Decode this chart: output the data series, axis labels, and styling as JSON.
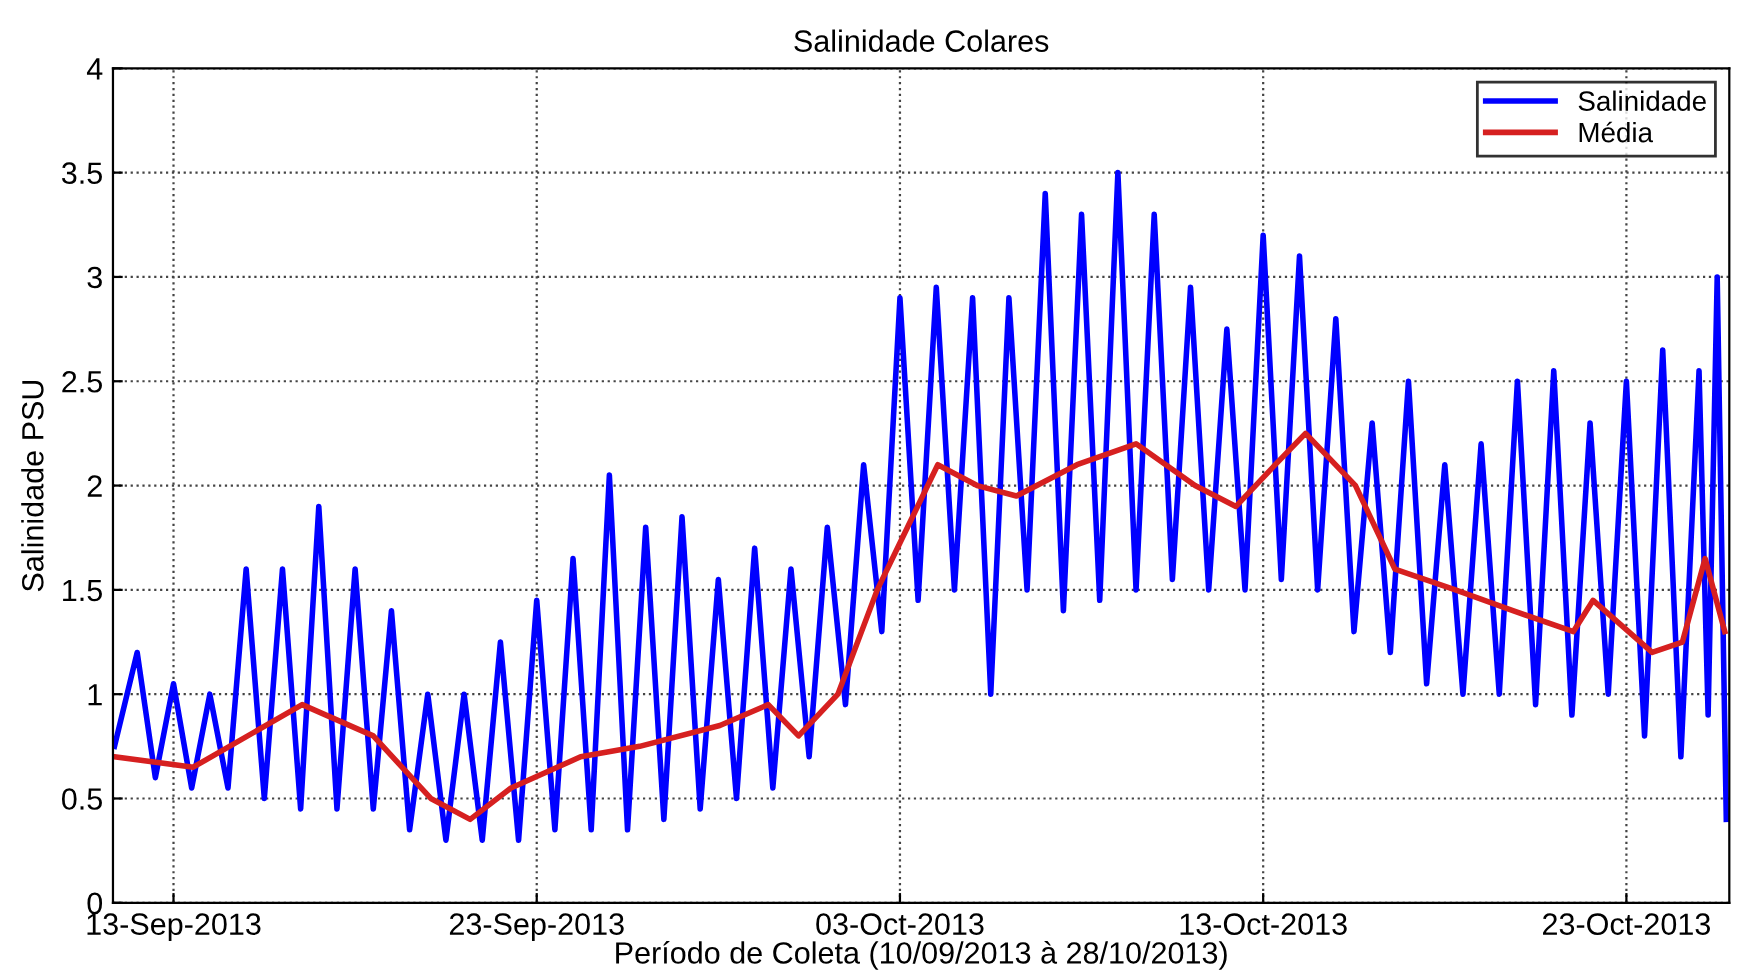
{
  "chart_data": {
    "type": "line",
    "title": "Salinidade Colares",
    "xlabel": "Período de Coleta (10/09/2013 à 28/10/2013)",
    "ylabel": "Salinidade PSU",
    "xlim": [
      "2013-09-11T08:00",
      "2013-10-25T20:00"
    ],
    "xticks": [
      {
        "value": "2013-09-13",
        "label": "13-Sep-2013"
      },
      {
        "value": "2013-09-23",
        "label": "23-Sep-2013"
      },
      {
        "value": "2013-10-03",
        "label": "03-Oct-2013"
      },
      {
        "value": "2013-10-13",
        "label": "13-Oct-2013"
      },
      {
        "value": "2013-10-23",
        "label": "23-Oct-2013"
      }
    ],
    "ylim": [
      0,
      4
    ],
    "yticks": [
      0,
      0.5,
      1,
      1.5,
      2,
      2.5,
      3,
      3.5,
      4
    ],
    "grid": true,
    "legend": "top right",
    "line_style": "solid",
    "marker": "none",
    "series": [
      {
        "name": "Salinidade",
        "color": "#0000ff",
        "x": [
          "2013-09-11T09:00",
          "2013-09-12T00:00",
          "2013-09-12T12:00",
          "2013-09-13T00:00",
          "2013-09-13T12:00",
          "2013-09-14T00:00",
          "2013-09-14T12:00",
          "2013-09-15T00:00",
          "2013-09-15T12:00",
          "2013-09-16T00:00",
          "2013-09-16T12:00",
          "2013-09-17T00:00",
          "2013-09-17T12:00",
          "2013-09-18T00:00",
          "2013-09-18T12:00",
          "2013-09-19T00:00",
          "2013-09-19T12:00",
          "2013-09-20T00:00",
          "2013-09-20T12:00",
          "2013-09-21T00:00",
          "2013-09-21T12:00",
          "2013-09-22T00:00",
          "2013-09-22T12:00",
          "2013-09-23T00:00",
          "2013-09-23T12:00",
          "2013-09-24T00:00",
          "2013-09-24T12:00",
          "2013-09-25T00:00",
          "2013-09-25T12:00",
          "2013-09-26T00:00",
          "2013-09-26T12:00",
          "2013-09-27T00:00",
          "2013-09-27T12:00",
          "2013-09-28T00:00",
          "2013-09-28T12:00",
          "2013-09-29T00:00",
          "2013-09-29T12:00",
          "2013-09-30T00:00",
          "2013-09-30T12:00",
          "2013-10-01T00:00",
          "2013-10-01T12:00",
          "2013-10-02T00:00",
          "2013-10-02T12:00",
          "2013-10-03T00:00",
          "2013-10-03T12:00",
          "2013-10-04T00:00",
          "2013-10-04T12:00",
          "2013-10-05T00:00",
          "2013-10-05T12:00",
          "2013-10-06T00:00",
          "2013-10-06T12:00",
          "2013-10-07T00:00",
          "2013-10-07T12:00",
          "2013-10-08T00:00",
          "2013-10-08T12:00",
          "2013-10-09T00:00",
          "2013-10-09T12:00",
          "2013-10-10T00:00",
          "2013-10-10T12:00",
          "2013-10-11T00:00",
          "2013-10-11T12:00",
          "2013-10-12T00:00",
          "2013-10-12T12:00",
          "2013-10-13T00:00",
          "2013-10-13T12:00",
          "2013-10-14T00:00",
          "2013-10-14T12:00",
          "2013-10-15T00:00",
          "2013-10-15T12:00",
          "2013-10-16T00:00",
          "2013-10-16T12:00",
          "2013-10-17T00:00",
          "2013-10-17T12:00",
          "2013-10-18T00:00",
          "2013-10-18T12:00",
          "2013-10-19T00:00",
          "2013-10-19T12:00",
          "2013-10-20T00:00",
          "2013-10-20T12:00",
          "2013-10-21T00:00",
          "2013-10-21T12:00",
          "2013-10-22T00:00",
          "2013-10-22T12:00",
          "2013-10-23T00:00",
          "2013-10-23T12:00",
          "2013-10-24T00:00",
          "2013-10-24T12:00",
          "2013-10-25T00:00",
          "2013-10-25T06:00",
          "2013-10-25T12:00",
          "2013-10-25T18:00"
        ],
        "values": [
          0.75,
          1.2,
          0.6,
          1.05,
          0.55,
          1.0,
          0.55,
          1.6,
          0.5,
          1.6,
          0.45,
          1.9,
          0.45,
          1.6,
          0.45,
          1.4,
          0.35,
          1.0,
          0.3,
          1.0,
          0.3,
          1.25,
          0.3,
          1.45,
          0.35,
          1.65,
          0.35,
          2.05,
          0.35,
          1.8,
          0.4,
          1.85,
          0.45,
          1.55,
          0.5,
          1.7,
          0.55,
          1.6,
          0.7,
          1.8,
          0.95,
          2.1,
          1.3,
          2.9,
          1.45,
          2.95,
          1.5,
          2.9,
          1.0,
          2.9,
          1.5,
          3.4,
          1.4,
          3.3,
          1.45,
          3.5,
          1.5,
          3.3,
          1.55,
          2.95,
          1.5,
          2.75,
          1.5,
          3.2,
          1.55,
          3.1,
          1.5,
          2.8,
          1.3,
          2.3,
          1.2,
          2.5,
          1.05,
          2.1,
          1.0,
          2.2,
          1.0,
          2.5,
          0.95,
          2.55,
          0.9,
          2.3,
          1.0,
          2.5,
          0.8,
          2.65,
          0.7,
          2.55,
          0.9,
          3.0,
          0.4
        ]
      },
      {
        "name": "Média",
        "color": "#d62020",
        "x": [
          "2013-09-11T09:00",
          "2013-09-13T13:00",
          "2013-09-16T13:00",
          "2013-09-18T12:00",
          "2013-09-20T02:00",
          "2013-09-21T04:00",
          "2013-09-22T07:00",
          "2013-09-24T05:00",
          "2013-09-25T20:00",
          "2013-09-28T01:00",
          "2013-09-29T09:00",
          "2013-09-30T05:00",
          "2013-10-01T07:00",
          "2013-10-02T09:00",
          "2013-10-03T05:00",
          "2013-10-04T01:00",
          "2013-10-05T03:00",
          "2013-10-06T05:00",
          "2013-10-07T21:00",
          "2013-10-09T12:00",
          "2013-10-11T03:00",
          "2013-10-12T06:00",
          "2013-10-13T08:00",
          "2013-10-14T04:00",
          "2013-10-15T13:00",
          "2013-10-16T15:00",
          "2013-10-18T07:00",
          "2013-10-19T21:00",
          "2013-10-21T13:00",
          "2013-10-22T02:00",
          "2013-10-23T17:00",
          "2013-10-24T13:00",
          "2013-10-25T04:00",
          "2013-10-25T17:00"
        ],
        "values": [
          0.7,
          0.65,
          0.95,
          0.8,
          0.5,
          0.4,
          0.55,
          0.7,
          0.75,
          0.85,
          0.95,
          0.8,
          1.0,
          1.5,
          1.8,
          2.1,
          2.0,
          1.95,
          2.1,
          2.2,
          2.0,
          1.9,
          2.1,
          2.25,
          2.0,
          1.6,
          1.5,
          1.4,
          1.3,
          1.45,
          1.2,
          1.25,
          1.65,
          1.3
        ]
      }
    ]
  }
}
